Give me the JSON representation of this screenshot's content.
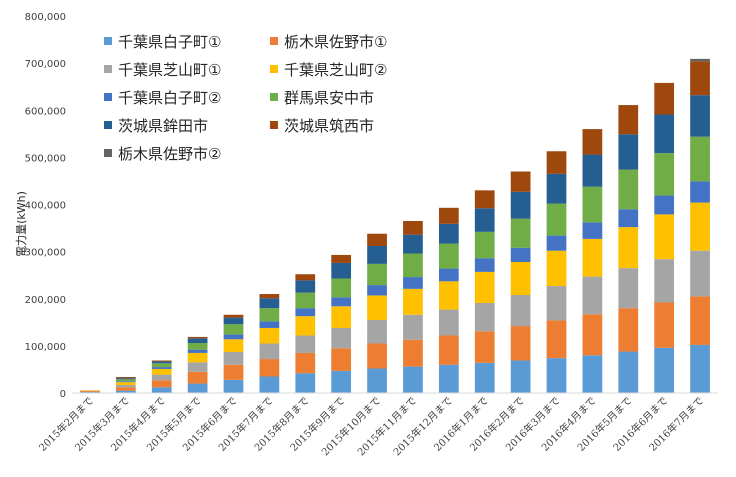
{
  "chart_data": {
    "type": "bar",
    "stacked": true,
    "title": "",
    "xlabel": "",
    "ylabel": "電力量(kWh)",
    "ylim": [
      0,
      800000
    ],
    "yticks": [
      0,
      100000,
      200000,
      300000,
      400000,
      500000,
      600000,
      700000,
      800000
    ],
    "ytick_labels": [
      "0",
      "100,000",
      "200,000",
      "300,000",
      "400,000",
      "500,000",
      "600,000",
      "700,000",
      "800,000"
    ],
    "grid": false,
    "legend_position": "top-left inside",
    "categories": [
      "2015年2月まで",
      "2015年3月まで",
      "2015年4月まで",
      "2015年5月まで",
      "2015年6月まで",
      "2015年7月まで",
      "2015年8月まで",
      "2015年9月まで",
      "2015年10月まで",
      "2015年11月まで",
      "2015年12月まで",
      "2016年1月まで",
      "2016年2月まで",
      "2016年3月まで",
      "2016年4月まで",
      "2016年5月まで",
      "2016年6月まで",
      "2016年7月まで"
    ],
    "series": [
      {
        "name": "千葉県白子町①",
        "color": "#5b9bd5",
        "values": [
          2000,
          5000,
          12000,
          20000,
          28000,
          35000,
          42000,
          47000,
          52000,
          56000,
          60000,
          64000,
          69000,
          74000,
          80000,
          88000,
          96000,
          102000
        ]
      },
      {
        "name": "栃木県佐野市①",
        "color": "#ed7d31",
        "values": [
          2000,
          7000,
          15000,
          25000,
          32000,
          37000,
          43000,
          48000,
          53000,
          57000,
          62000,
          67000,
          73000,
          80000,
          87000,
          92000,
          96000,
          103000
        ]
      },
      {
        "name": "千葉県芝山町①",
        "color": "#a5a5a5",
        "values": [
          1000,
          5000,
          12000,
          20000,
          27000,
          33000,
          37000,
          43000,
          50000,
          53000,
          55000,
          60000,
          66000,
          73000,
          80000,
          85000,
          92000,
          97000
        ]
      },
      {
        "name": "千葉県芝山町②",
        "color": "#ffc000",
        "values": [
          1000,
          6000,
          12000,
          20000,
          27000,
          33000,
          41000,
          46000,
          52000,
          55000,
          60000,
          66000,
          70000,
          75000,
          80000,
          87000,
          95000,
          102000
        ]
      },
      {
        "name": "千葉県白子町②",
        "color": "#4472c4",
        "values": [
          0,
          2000,
          4000,
          7000,
          10000,
          14000,
          17000,
          19000,
          22000,
          25000,
          27000,
          29000,
          30000,
          32000,
          35000,
          38000,
          40000,
          45000
        ]
      },
      {
        "name": "群馬県安中市",
        "color": "#70ad47",
        "values": [
          0,
          4000,
          8000,
          14000,
          22000,
          28000,
          33000,
          40000,
          45000,
          50000,
          53000,
          56000,
          62000,
          68000,
          76000,
          84000,
          90000,
          95000
        ]
      },
      {
        "name": "茨城県鉾田市",
        "color": "#255e91",
        "values": [
          0,
          2000,
          4000,
          10000,
          14000,
          21000,
          26000,
          33000,
          38000,
          40000,
          42000,
          50000,
          57000,
          63000,
          68000,
          75000,
          82000,
          88000
        ]
      },
      {
        "name": "茨城県筑西市",
        "color": "#9e480e",
        "values": [
          0,
          2000,
          2000,
          3000,
          6000,
          9000,
          13000,
          17000,
          26000,
          29000,
          34000,
          38000,
          43000,
          48000,
          54000,
          62000,
          67000,
          72000
        ]
      },
      {
        "name": "栃木県佐野市②",
        "color": "#636363",
        "values": [
          0,
          1000,
          0,
          0,
          0,
          0,
          0,
          0,
          0,
          0,
          0,
          0,
          0,
          0,
          0,
          0,
          0,
          5000
        ]
      }
    ]
  }
}
